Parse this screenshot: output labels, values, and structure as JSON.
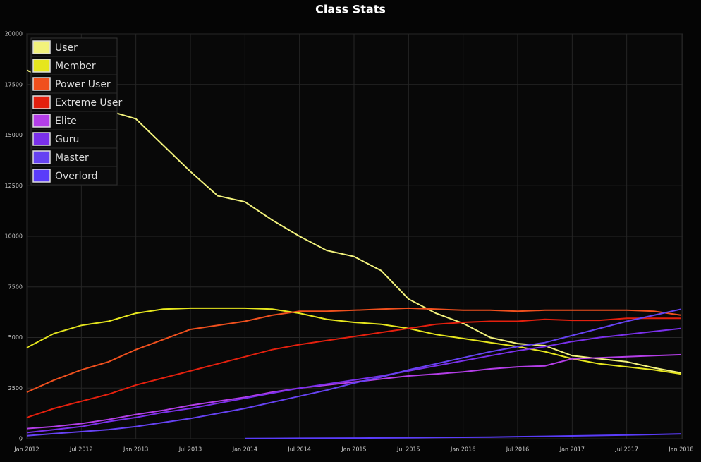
{
  "chart_data": {
    "type": "line",
    "title": "Class Stats",
    "x": [
      "Jan 2012",
      "Apr 2012",
      "Jul 2012",
      "Oct 2012",
      "Jan 2013",
      "Apr 2013",
      "Jul 2013",
      "Oct 2013",
      "Jan 2014",
      "Apr 2014",
      "Jul 2014",
      "Oct 2014",
      "Jan 2015",
      "Apr 2015",
      "Jul 2015",
      "Oct 2015",
      "Jan 2016",
      "Apr 2016",
      "Jul 2016",
      "Oct 2016",
      "Jan 2017",
      "Apr 2017",
      "Jul 2017",
      "Oct 2017",
      "Jan 2018"
    ],
    "xticks": [
      "Jan 2012",
      "Jul 2012",
      "Jan 2013",
      "Jul 2013",
      "Jan 2014",
      "Jul 2014",
      "Jan 2015",
      "Jul 2015",
      "Jan 2016",
      "Jul 2016",
      "Jan 2017",
      "Jul 2017",
      "Jan 2018"
    ],
    "ylim": [
      0,
      20000
    ],
    "yticks": [
      0,
      2500,
      5000,
      7500,
      10000,
      12500,
      15000,
      17500,
      20000
    ],
    "grid": true,
    "legend": "top-left",
    "series": [
      {
        "name": "User",
        "color": "#f2f27c",
        "values": [
          18200,
          17700,
          17000,
          16200,
          15800,
          14500,
          13200,
          12000,
          11700,
          10800,
          10000,
          9300,
          9000,
          8300,
          6900,
          6200,
          5700,
          5000,
          4700,
          4600,
          4100,
          3950,
          3800,
          3500,
          3250
        ]
      },
      {
        "name": "Member",
        "color": "#e6e61e",
        "values": [
          4500,
          5200,
          5600,
          5800,
          6200,
          6400,
          6450,
          6450,
          6450,
          6400,
          6200,
          5900,
          5750,
          5650,
          5450,
          5150,
          4950,
          4750,
          4550,
          4300,
          3950,
          3700,
          3550,
          3400,
          3200
        ]
      },
      {
        "name": "Power User",
        "color": "#f0501e",
        "values": [
          2300,
          2900,
          3400,
          3800,
          4400,
          4900,
          5400,
          5600,
          5800,
          6100,
          6300,
          6300,
          6350,
          6400,
          6450,
          6400,
          6350,
          6350,
          6300,
          6350,
          6350,
          6350,
          6350,
          6300,
          6100
        ]
      },
      {
        "name": "Extreme User",
        "color": "#e4200e",
        "values": [
          1050,
          1500,
          1850,
          2200,
          2650,
          3000,
          3350,
          3700,
          4050,
          4400,
          4650,
          4850,
          5050,
          5250,
          5450,
          5650,
          5750,
          5800,
          5800,
          5900,
          5850,
          5850,
          5950,
          5950,
          5950
        ]
      },
      {
        "name": "Elite",
        "color": "#b43ee8",
        "values": [
          500,
          600,
          750,
          950,
          1200,
          1400,
          1650,
          1850,
          2050,
          2300,
          2500,
          2650,
          2800,
          2950,
          3100,
          3200,
          3300,
          3450,
          3550,
          3600,
          3950,
          4000,
          4050,
          4100,
          4150
        ]
      },
      {
        "name": "Guru",
        "color": "#7a30ea",
        "values": [
          300,
          450,
          600,
          850,
          1050,
          1300,
          1500,
          1750,
          2000,
          2250,
          2500,
          2700,
          2900,
          3100,
          3350,
          3600,
          3850,
          4100,
          4350,
          4550,
          4800,
          5000,
          5150,
          5300,
          5450
        ]
      },
      {
        "name": "Master",
        "color": "#6642f2",
        "values": [
          150,
          250,
          350,
          450,
          600,
          800,
          1000,
          1250,
          1500,
          1800,
          2100,
          2400,
          2750,
          3050,
          3400,
          3700,
          4000,
          4300,
          4550,
          4750,
          5100,
          5450,
          5800,
          6100,
          6400
        ]
      },
      {
        "name": "Overlord",
        "color": "#5a3cfa",
        "values": [
          null,
          null,
          null,
          null,
          null,
          null,
          null,
          null,
          10,
          15,
          20,
          25,
          30,
          40,
          50,
          60,
          70,
          80,
          100,
          120,
          140,
          160,
          180,
          210,
          240
        ]
      }
    ]
  }
}
